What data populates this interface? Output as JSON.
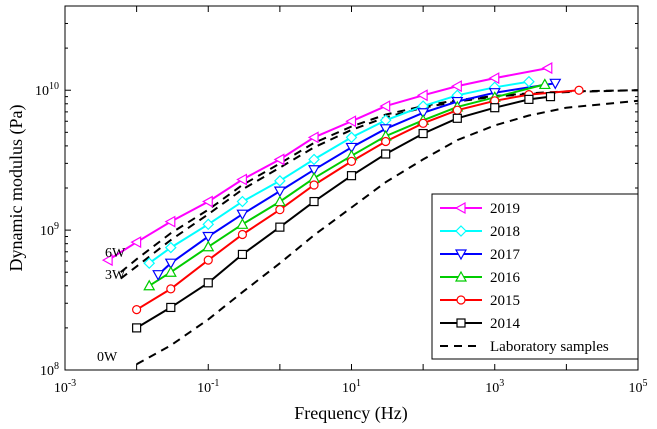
{
  "chart_data": {
    "type": "line",
    "xlabel": "Frequency (Hz)",
    "ylabel": "Dynamic modulus (Pa)",
    "xscale": "log",
    "yscale": "log",
    "xlim": [
      0.001,
      100000
    ],
    "ylim": [
      100000000,
      40000000000
    ],
    "x_ticks": [
      {
        "base": "10",
        "exp": "-3",
        "value": 0.001
      },
      {
        "base": "10",
        "exp": "-1",
        "value": 0.1
      },
      {
        "base": "10",
        "exp": "1",
        "value": 10
      },
      {
        "base": "10",
        "exp": "3",
        "value": 1000
      },
      {
        "base": "10",
        "exp": "5",
        "value": 100000
      }
    ],
    "y_ticks": [
      {
        "base": "10",
        "exp": "8",
        "value": 100000000
      },
      {
        "base": "10",
        "exp": "9",
        "value": 1000000000
      },
      {
        "base": "10",
        "exp": "10",
        "value": 10000000000
      }
    ],
    "legend_position": "lower-right",
    "series": [
      {
        "name": "2019",
        "color": "#ff00ff",
        "marker": "triangle-left",
        "x": [
          0.004,
          0.01,
          0.03,
          0.1,
          0.3,
          1,
          3,
          10,
          30,
          100,
          300,
          1000,
          5500
        ],
        "y": [
          610000000,
          820000000,
          1150000000,
          1600000000,
          2300000000,
          3200000000,
          4600000000,
          6000000000,
          7700000000,
          9200000000,
          10700000000,
          12200000000,
          14400000000
        ]
      },
      {
        "name": "2018",
        "color": "#00ffff",
        "marker": "diamond",
        "x": [
          0.015,
          0.03,
          0.1,
          0.3,
          1,
          3,
          10,
          30,
          100,
          300,
          1000,
          3000
        ],
        "y": [
          580000000,
          750000000,
          1100000000,
          1600000000,
          2250000000,
          3200000000,
          4600000000,
          6100000000,
          7700000000,
          9200000000,
          10500000000,
          11500000000
        ]
      },
      {
        "name": "2017",
        "color": "#0000ff",
        "marker": "triangle-down",
        "x": [
          0.02,
          0.03,
          0.1,
          0.3,
          1,
          3,
          10,
          30,
          100,
          300,
          1000,
          7000
        ],
        "y": [
          480000000,
          580000000,
          900000000,
          1300000000,
          1900000000,
          2700000000,
          3900000000,
          5300000000,
          6900000000,
          8300000000,
          9600000000,
          11200000000
        ]
      },
      {
        "name": "2016",
        "color": "#00cc00",
        "marker": "triangle-up",
        "x": [
          0.015,
          0.03,
          0.1,
          0.3,
          1,
          3,
          10,
          30,
          100,
          300,
          1000,
          5000
        ],
        "y": [
          400000000,
          500000000,
          760000000,
          1100000000,
          1600000000,
          2350000000,
          3400000000,
          4700000000,
          6100000000,
          7600000000,
          8900000000,
          11000000000
        ]
      },
      {
        "name": "2015",
        "color": "#ff0000",
        "marker": "circle",
        "x": [
          0.01,
          0.03,
          0.1,
          0.3,
          1,
          3,
          10,
          30,
          100,
          300,
          1000,
          3000,
          15000
        ],
        "y": [
          270000000,
          380000000,
          610000000,
          930000000,
          1400000000,
          2100000000,
          3100000000,
          4300000000,
          5800000000,
          7200000000,
          8400000000,
          9300000000,
          10000000000
        ]
      },
      {
        "name": "2014",
        "color": "#000000",
        "marker": "square",
        "x": [
          0.01,
          0.03,
          0.1,
          0.3,
          1,
          3,
          10,
          30,
          100,
          300,
          1000,
          3000,
          6000
        ],
        "y": [
          200000000,
          280000000,
          420000000,
          670000000,
          1050000000,
          1600000000,
          2450000000,
          3500000000,
          4900000000,
          6300000000,
          7500000000,
          8600000000,
          9000000000
        ]
      },
      {
        "name": "Laboratory samples",
        "color": "#000000",
        "marker": "none",
        "dashed": true,
        "x": [
          0.01,
          0.03,
          0.1,
          0.3,
          1,
          3,
          10,
          30,
          100,
          300,
          1000,
          3000,
          10000,
          100000
        ],
        "y": [
          110000000,
          150000000,
          230000000,
          360000000,
          580000000,
          920000000,
          1450000000,
          2200000000,
          3200000000,
          4400000000,
          5600000000,
          6600000000,
          7500000000,
          8400000000
        ]
      }
    ],
    "extra_dashed_curves": [
      {
        "label": "6W",
        "x": [
          0.006,
          0.01,
          0.03,
          0.1,
          0.3,
          1,
          3,
          10,
          30,
          100,
          300,
          1000,
          3000,
          10000,
          100000
        ],
        "y": [
          500000000,
          620000000,
          950000000,
          1400000000,
          2100000000,
          3000000000,
          4200000000,
          5500000000,
          6700000000,
          7700000000,
          8500000000,
          9100000000,
          9500000000,
          9800000000,
          10000000000
        ]
      },
      {
        "label": "3W",
        "x": [
          0.006,
          0.01,
          0.03,
          0.1,
          0.3,
          1,
          3,
          10,
          30,
          100,
          300,
          1000,
          3000,
          10000,
          100000
        ],
        "y": [
          450000000,
          550000000,
          850000000,
          1300000000,
          1950000000,
          2800000000,
          3900000000,
          5200000000,
          6400000000,
          7500000000,
          8300000000,
          9000000000,
          9400000000,
          9700000000,
          10000000000
        ]
      }
    ],
    "annotations": {
      "label_6w": "6W",
      "label_3w": "3W",
      "label_0w": "0W"
    }
  }
}
